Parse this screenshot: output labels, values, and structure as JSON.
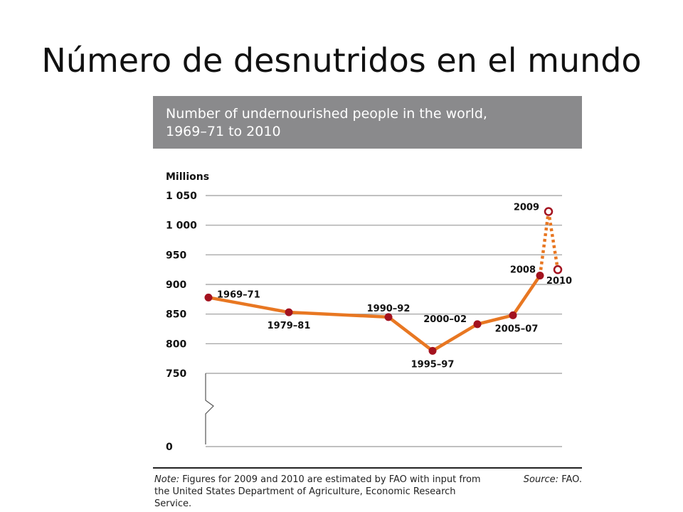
{
  "slide": {
    "title": "Número de desnutridos en el mundo"
  },
  "chart_data": {
    "type": "line",
    "title_line1": "Number of undernourished people in the world,",
    "title_line2": "1969–71 to 2010",
    "ylabel": "Millions",
    "y_ticks": [
      {
        "value": 1050,
        "label": "1 050"
      },
      {
        "value": 1000,
        "label": "1 000"
      },
      {
        "value": 950,
        "label": "950"
      },
      {
        "value": 900,
        "label": "900"
      },
      {
        "value": 850,
        "label": "850"
      },
      {
        "value": 800,
        "label": "800"
      },
      {
        "value": 750,
        "label": "750"
      },
      {
        "value": 0,
        "label": "0"
      }
    ],
    "axis_break": true,
    "ylim": [
      750,
      1050
    ],
    "line_color": "#e87722",
    "marker_color": "#a3121f",
    "points": [
      {
        "period": "1969–71",
        "value": 878,
        "estimated": false
      },
      {
        "period": "1979–81",
        "value": 853,
        "estimated": false
      },
      {
        "period": "1990–92",
        "value": 845,
        "estimated": false
      },
      {
        "period": "1995–97",
        "value": 788,
        "estimated": false
      },
      {
        "period": "2000–02",
        "value": 833,
        "estimated": false
      },
      {
        "period": "2005–07",
        "value": 848,
        "estimated": false
      },
      {
        "period": "2008",
        "value": 915,
        "estimated": false
      },
      {
        "period": "2009",
        "value": 1023,
        "estimated": true
      },
      {
        "period": "2010",
        "value": 925,
        "estimated": true
      }
    ]
  },
  "footer": {
    "note_label": "Note:",
    "note_text": " Figures for 2009 and 2010 are estimated by FAO with input from the United States Department of Agriculture, Economic Research Service.",
    "source_label": "Source:",
    "source_text": " FAO."
  }
}
